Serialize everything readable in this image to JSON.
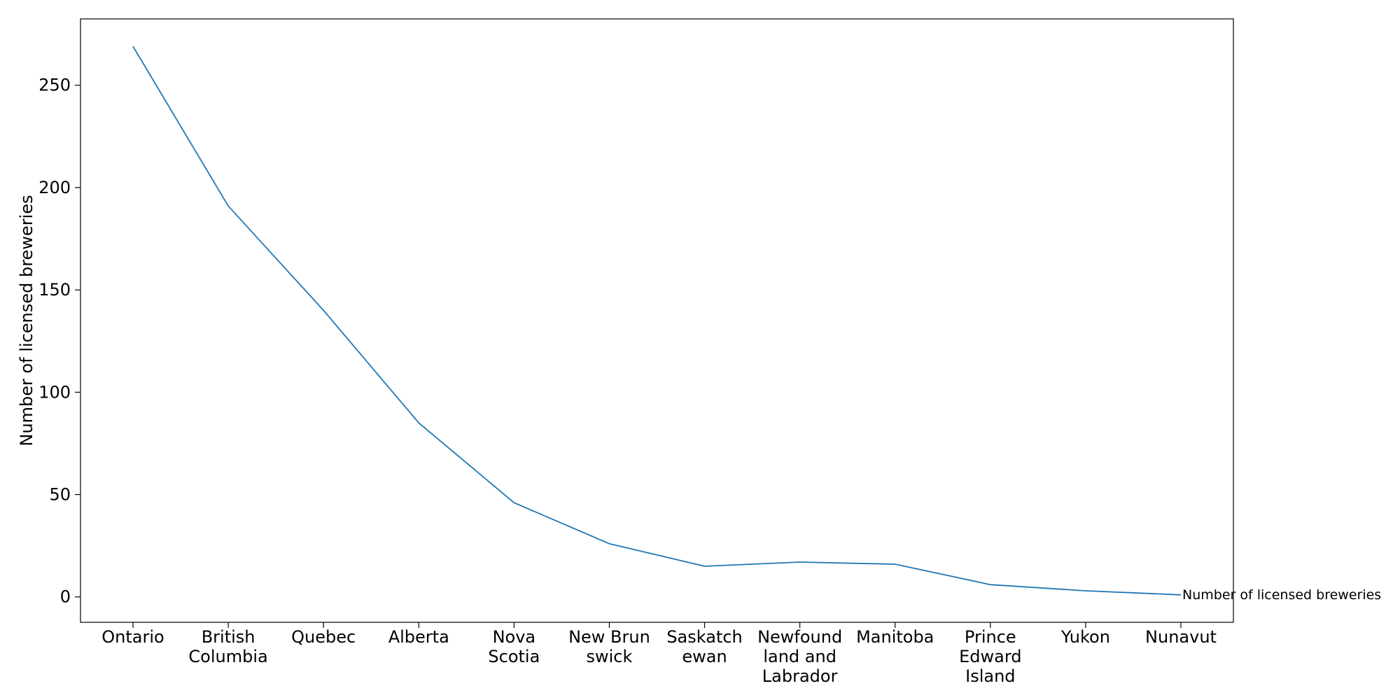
{
  "chart_data": {
    "type": "line",
    "title": "",
    "xlabel": "",
    "ylabel": "Number of licensed breweries",
    "categories": [
      "Ontario",
      "British\nColumbia",
      "Quebec",
      "Alberta",
      "Nova\nScotia",
      "New Brun\nswick",
      "Saskatch\newan",
      "Newfound\nland and\nLabrador",
      "Manitoba",
      "Prince\nEdward\nIsland",
      "Yukon",
      "Nunavut"
    ],
    "series": [
      {
        "name": "Number of licensed breweries",
        "values": [
          269,
          191,
          140,
          85,
          46,
          26,
          15,
          17,
          16,
          6,
          3,
          1
        ],
        "color": "#1f77b4"
      }
    ],
    "yticks": [
      0,
      50,
      100,
      150,
      200,
      250
    ],
    "ylim": [
      -12.4,
      282.4
    ],
    "grid": false,
    "legend": "none",
    "end_label": "Number of licensed breweries"
  }
}
